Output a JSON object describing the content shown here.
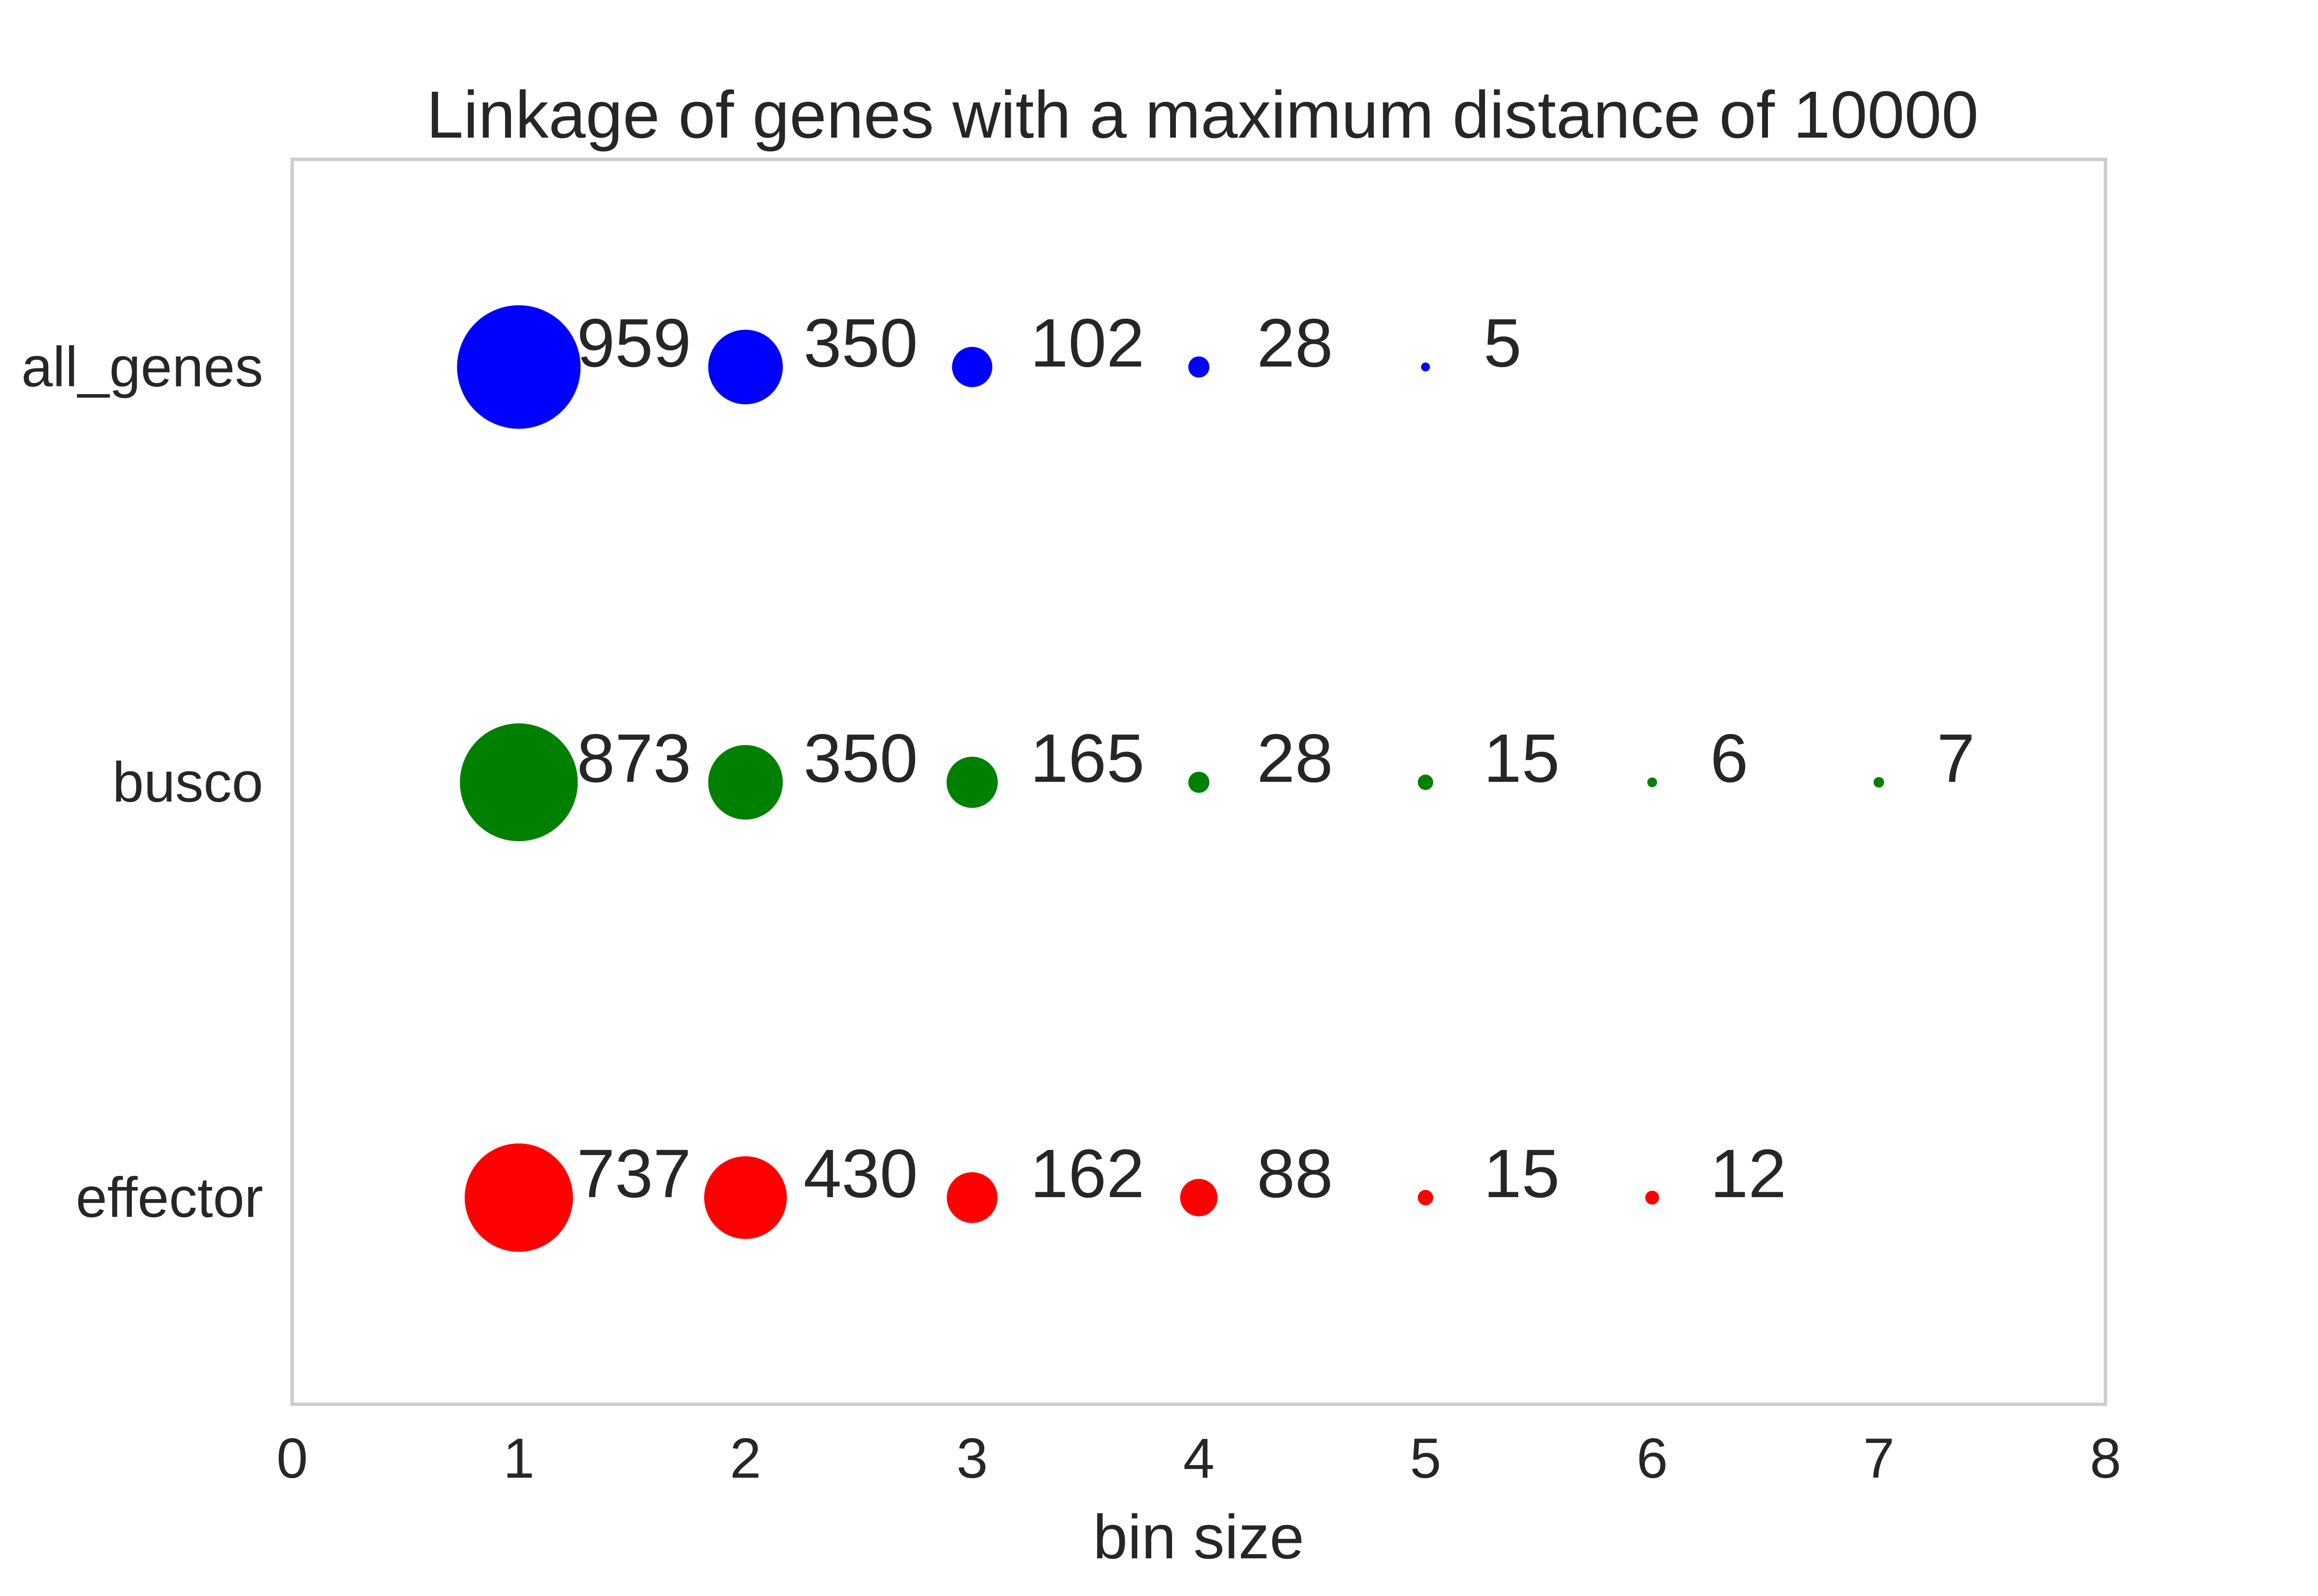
{
  "chart_data": {
    "type": "scatter",
    "title": "Linkage of genes with a maximum distance of 10000",
    "xlabel": "bin size",
    "ylabel": "",
    "xlim": [
      0,
      8
    ],
    "xticks": [
      "0",
      "1",
      "2",
      "3",
      "4",
      "5",
      "6",
      "7",
      "8"
    ],
    "categories": [
      "all_genes",
      "busco",
      "effector"
    ],
    "grid": false,
    "series": [
      {
        "name": "all_genes",
        "color": "#0000ff",
        "x": [
          1,
          2,
          3,
          4,
          5
        ],
        "values": [
          959,
          350,
          102,
          28,
          5
        ],
        "labels": [
          "959",
          "350",
          "102",
          "28",
          "5"
        ]
      },
      {
        "name": "busco",
        "color": "#008000",
        "x": [
          1,
          2,
          3,
          4,
          5,
          6,
          7
        ],
        "values": [
          873,
          350,
          165,
          28,
          15,
          6,
          7
        ],
        "labels": [
          "873",
          "350",
          "165",
          "28",
          "15",
          "6",
          "7"
        ]
      },
      {
        "name": "effector",
        "color": "#ff0000",
        "x": [
          1,
          2,
          3,
          4,
          5,
          6
        ],
        "values": [
          737,
          430,
          162,
          88,
          15,
          12
        ],
        "labels": [
          "737",
          "430",
          "162",
          "88",
          "15",
          "12"
        ]
      }
    ]
  }
}
